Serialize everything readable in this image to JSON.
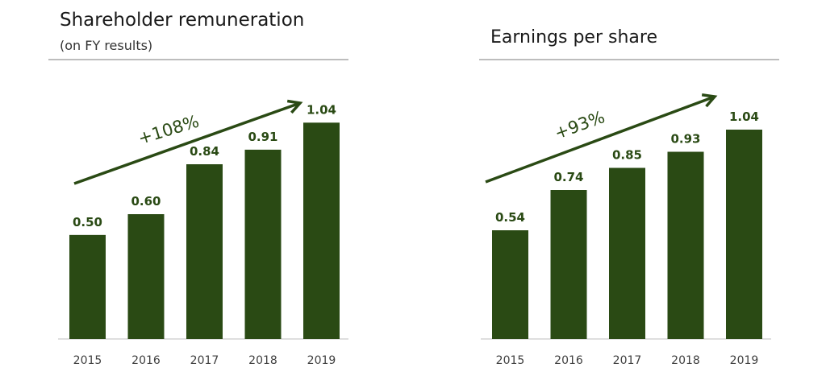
{
  "colors": {
    "bar": "#2a4a14",
    "label": "#2a4a14",
    "arrow": "#2a4a14",
    "rule": "#bdbdbd",
    "axis": "#bfbfbf"
  },
  "chart_data": [
    {
      "type": "bar",
      "title": "Shareholder remuneration",
      "subtitle": "(on FY results)",
      "categories": [
        "2015",
        "2016",
        "2017",
        "2018",
        "2019"
      ],
      "values": [
        0.5,
        0.6,
        0.84,
        0.91,
        1.04
      ],
      "value_labels": [
        "0.50",
        "0.60",
        "0.84",
        "0.91",
        "1.04"
      ],
      "annotation": "+108%",
      "ylim": [
        0,
        1.2
      ],
      "grid": false
    },
    {
      "type": "bar",
      "title": "Earnings per share",
      "categories": [
        "2015",
        "2016",
        "2017",
        "2018",
        "2019"
      ],
      "values": [
        0.54,
        0.74,
        0.85,
        0.93,
        1.04
      ],
      "value_labels": [
        "0.54",
        "0.74",
        "0.85",
        "0.93",
        "1.04"
      ],
      "annotation": "+93%",
      "ylim": [
        0,
        1.2
      ],
      "grid": false
    }
  ]
}
